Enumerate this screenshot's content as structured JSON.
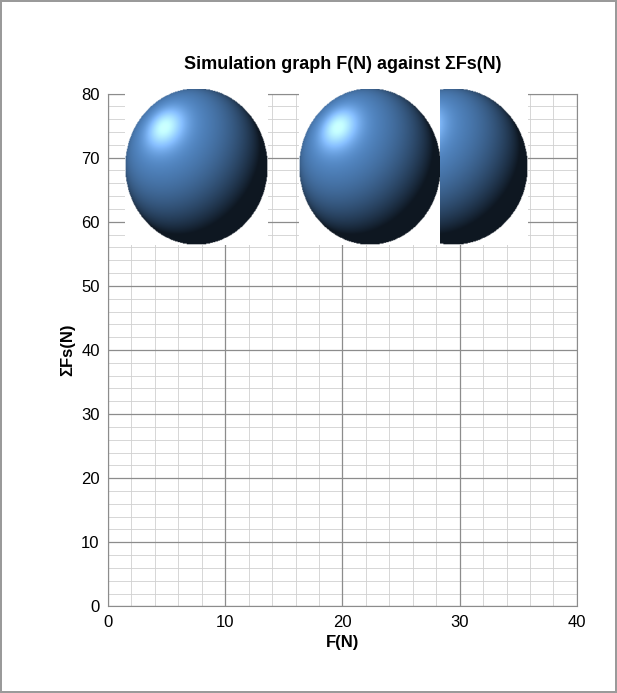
{
  "chart_data": {
    "type": "scatter",
    "title": "Simulation graph F(N) against ΣFs(N)",
    "x_label": "F(N)",
    "y_label": "ΣFs(N)",
    "x": [],
    "values": [],
    "xlim": [
      0,
      40
    ],
    "xticks": [
      0,
      10,
      20,
      30,
      40
    ],
    "ylim": [
      0,
      80
    ],
    "yticks": [
      0,
      10,
      20,
      30,
      40,
      50,
      60,
      70,
      80
    ],
    "grid": true
  }
}
